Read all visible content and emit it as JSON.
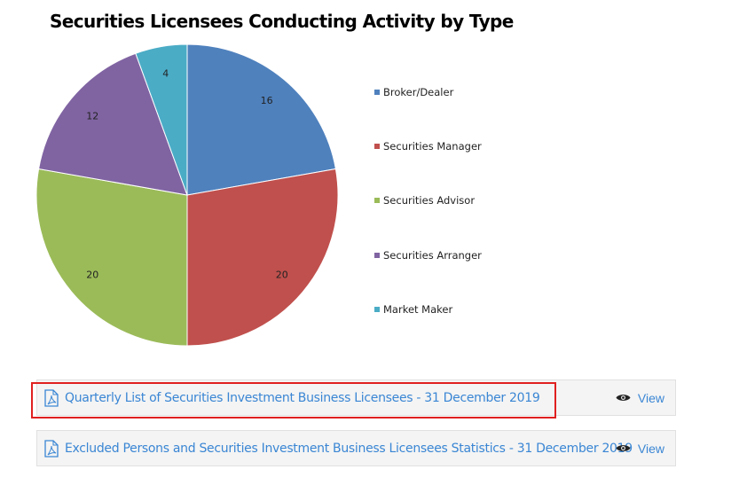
{
  "chart_data": {
    "type": "pie",
    "title": "Securities Licensees Conducting Activity by Type",
    "categories": [
      "Broker/Dealer",
      "Securities Manager",
      "Securities Advisor",
      "Securities Arranger",
      "Market Maker"
    ],
    "values": [
      16,
      20,
      20,
      12,
      4
    ],
    "colors": [
      "#4f81bd",
      "#c0504d",
      "#9bbb59",
      "#8064a2",
      "#4bacc6"
    ],
    "legend_position": "right"
  },
  "documents": [
    {
      "title": "Quarterly List of Securities Investment Business Licensees - 31 December 2019",
      "view_label": "View",
      "highlighted": true
    },
    {
      "title": "Excluded Persons and Securities Investment Business Licensees Statistics - 31 December 2019",
      "view_label": "View",
      "highlighted": false
    }
  ]
}
